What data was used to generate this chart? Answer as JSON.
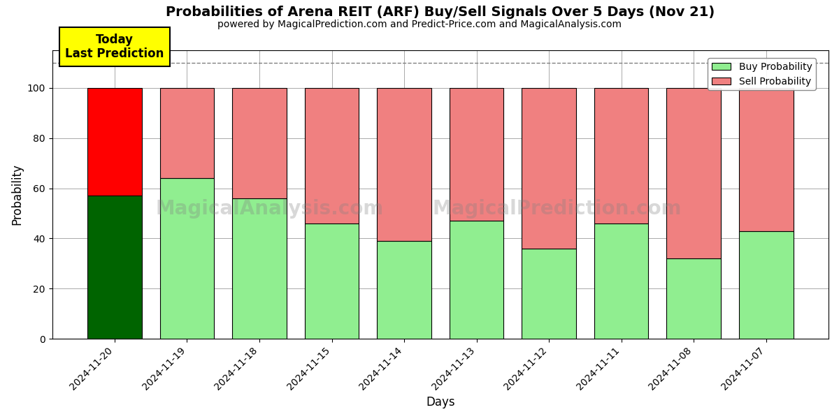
{
  "title": "Probabilities of Arena REIT (ARF) Buy/Sell Signals Over 5 Days (Nov 21)",
  "subtitle": "powered by MagicalPrediction.com and Predict-Price.com and MagicalAnalysis.com",
  "xlabel": "Days",
  "ylabel": "Probability",
  "dates": [
    "2024-11-20",
    "2024-11-19",
    "2024-11-18",
    "2024-11-15",
    "2024-11-14",
    "2024-11-13",
    "2024-11-12",
    "2024-11-11",
    "2024-11-08",
    "2024-11-07"
  ],
  "buy_values": [
    57,
    64,
    56,
    46,
    39,
    47,
    36,
    46,
    32,
    43
  ],
  "sell_values": [
    43,
    36,
    44,
    54,
    61,
    53,
    64,
    54,
    68,
    57
  ],
  "today_buy_color": "#006400",
  "today_sell_color": "#FF0000",
  "buy_color": "#90EE90",
  "sell_color": "#F08080",
  "today_annotation_bg": "#FFFF00",
  "today_annotation_text": "Today\nLast Prediction",
  "dashed_line_y": 110,
  "ylim": [
    0,
    115
  ],
  "yticks": [
    0,
    20,
    40,
    60,
    80,
    100
  ],
  "legend_buy_label": "Buy Probability",
  "legend_sell_label": "Sell Probability",
  "watermark_text1": "MagicalAnalysis.com",
  "watermark_text2": "MagicalPrediction.com",
  "bar_width": 0.75,
  "figsize": [
    12,
    6
  ],
  "dpi": 100,
  "facecolor": "#ffffff",
  "grid_color": "#aaaaaa"
}
